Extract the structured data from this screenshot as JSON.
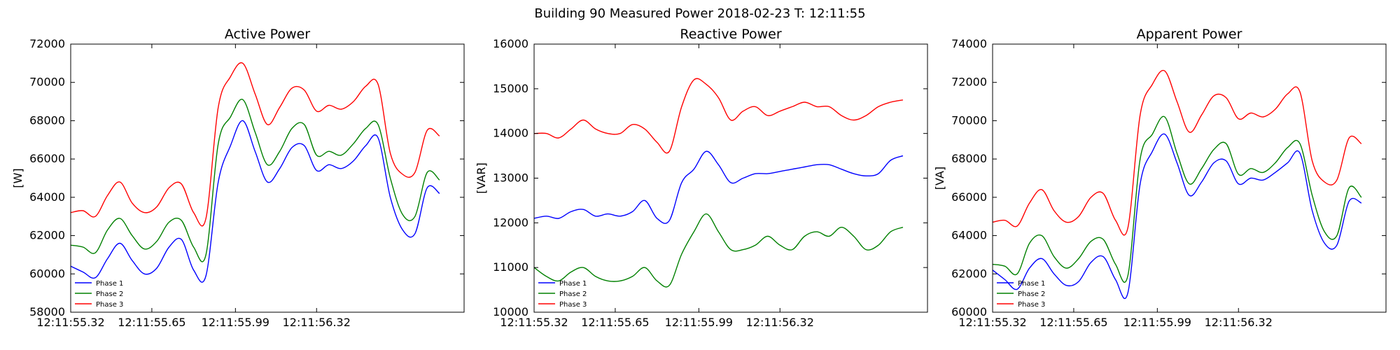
{
  "suptitle": "Building 90 Measured Power 2018-02-23 T: 12:11:55",
  "legend_labels": [
    "Phase 1",
    "Phase 2",
    "Phase 3"
  ],
  "series_colors": [
    "#0000ff",
    "#008000",
    "#ff0000"
  ],
  "chart_data": [
    {
      "type": "line",
      "title": "Active Power",
      "ylabel": "[W]",
      "ylim": [
        58000,
        72000
      ],
      "yticks": [
        58000,
        60000,
        62000,
        64000,
        66000,
        68000,
        70000,
        72000
      ],
      "xticks": [
        "12:11:55.32",
        "12:11:55.65",
        "12:11:55.99",
        "12:11:56.32"
      ],
      "x_tick_positions": [
        0,
        0.33,
        0.67,
        1.0
      ],
      "x_range": [
        0,
        1.6
      ],
      "x": [
        0,
        0.05,
        0.1,
        0.15,
        0.2,
        0.25,
        0.3,
        0.35,
        0.4,
        0.45,
        0.5,
        0.55,
        0.6,
        0.65,
        0.7,
        0.75,
        0.8,
        0.85,
        0.9,
        0.95,
        1.0,
        1.05,
        1.1,
        1.15,
        1.2,
        1.25,
        1.3,
        1.35,
        1.4,
        1.45,
        1.5
      ],
      "legend_loc": "lower-left",
      "series": [
        {
          "name": "Phase 1",
          "values": [
            60400,
            60100,
            59800,
            60800,
            61600,
            60700,
            60000,
            60300,
            61400,
            61800,
            60200,
            59900,
            64800,
            66700,
            68000,
            66400,
            64800,
            65500,
            66600,
            66700,
            65400,
            65700,
            65500,
            65900,
            66700,
            67100,
            64000,
            62300,
            62100,
            64500,
            64200
          ]
        },
        {
          "name": "Phase 2",
          "values": [
            61500,
            61400,
            61100,
            62300,
            62900,
            62000,
            61300,
            61700,
            62700,
            62800,
            61400,
            61000,
            66800,
            68200,
            69100,
            67400,
            65700,
            66400,
            67600,
            67800,
            66200,
            66400,
            66200,
            66800,
            67600,
            67800,
            65000,
            63100,
            63000,
            65300,
            64900
          ]
        },
        {
          "name": "Phase 3",
          "values": [
            63200,
            63300,
            63000,
            64100,
            64800,
            63700,
            63200,
            63500,
            64500,
            64700,
            63200,
            62900,
            68700,
            70300,
            71000,
            69400,
            67800,
            68700,
            69700,
            69600,
            68500,
            68800,
            68600,
            69000,
            69800,
            69900,
            66300,
            65200,
            65300,
            67500,
            67200
          ]
        }
      ]
    },
    {
      "type": "line",
      "title": "Reactive Power",
      "ylabel": "[VAR]",
      "ylim": [
        10000,
        16000
      ],
      "yticks": [
        10000,
        11000,
        12000,
        13000,
        14000,
        15000,
        16000
      ],
      "xticks": [
        "12:11:55.32",
        "12:11:55.65",
        "12:11:55.99",
        "12:11:56.32"
      ],
      "x_tick_positions": [
        0,
        0.33,
        0.67,
        1.0
      ],
      "x_range": [
        0,
        1.6
      ],
      "x": [
        0,
        0.05,
        0.1,
        0.15,
        0.2,
        0.25,
        0.3,
        0.35,
        0.4,
        0.45,
        0.5,
        0.55,
        0.6,
        0.65,
        0.7,
        0.75,
        0.8,
        0.85,
        0.9,
        0.95,
        1.0,
        1.05,
        1.1,
        1.15,
        1.2,
        1.25,
        1.3,
        1.35,
        1.4,
        1.45,
        1.5
      ],
      "legend_loc": "lower-left",
      "series": [
        {
          "name": "Phase 1",
          "values": [
            12100,
            12150,
            12100,
            12250,
            12300,
            12150,
            12200,
            12150,
            12250,
            12500,
            12100,
            12050,
            12900,
            13200,
            13600,
            13300,
            12900,
            13000,
            13100,
            13100,
            13150,
            13200,
            13250,
            13300,
            13300,
            13200,
            13100,
            13050,
            13100,
            13400,
            13500
          ]
        },
        {
          "name": "Phase 2",
          "values": [
            11000,
            10800,
            10700,
            10900,
            11000,
            10800,
            10700,
            10700,
            10800,
            11000,
            10700,
            10600,
            11300,
            11800,
            12200,
            11800,
            11400,
            11400,
            11500,
            11700,
            11500,
            11400,
            11700,
            11800,
            11700,
            11900,
            11700,
            11400,
            11500,
            11800,
            11900
          ]
        },
        {
          "name": "Phase 3",
          "values": [
            14000,
            14000,
            13900,
            14100,
            14300,
            14100,
            14000,
            14000,
            14200,
            14100,
            13800,
            13600,
            14600,
            15200,
            15100,
            14800,
            14300,
            14500,
            14600,
            14400,
            14500,
            14600,
            14700,
            14600,
            14600,
            14400,
            14300,
            14400,
            14600,
            14700,
            14750
          ]
        }
      ]
    },
    {
      "type": "line",
      "title": "Apparent Power",
      "ylabel": "[VA]",
      "ylim": [
        60000,
        74000
      ],
      "yticks": [
        60000,
        62000,
        64000,
        66000,
        68000,
        70000,
        72000,
        74000
      ],
      "xticks": [
        "12:11:55.32",
        "12:11:55.65",
        "12:11:55.99",
        "12:11:56.32"
      ],
      "x_tick_positions": [
        0,
        0.33,
        0.67,
        1.0
      ],
      "x_range": [
        0,
        1.6
      ],
      "x": [
        0,
        0.05,
        0.1,
        0.15,
        0.2,
        0.25,
        0.3,
        0.35,
        0.4,
        0.45,
        0.5,
        0.55,
        0.6,
        0.65,
        0.7,
        0.75,
        0.8,
        0.85,
        0.9,
        0.95,
        1.0,
        1.05,
        1.1,
        1.15,
        1.2,
        1.25,
        1.3,
        1.35,
        1.4,
        1.45,
        1.5
      ],
      "legend_loc": "lower-left",
      "series": [
        {
          "name": "Phase 1",
          "values": [
            62200,
            61700,
            61200,
            62300,
            62800,
            62000,
            61400,
            61600,
            62600,
            62900,
            61700,
            61000,
            66700,
            68400,
            69300,
            67800,
            66100,
            66800,
            67800,
            67900,
            66700,
            67000,
            66900,
            67300,
            67800,
            68300,
            65300,
            63600,
            63500,
            65800,
            65700
          ]
        },
        {
          "name": "Phase 2",
          "values": [
            62500,
            62400,
            62000,
            63600,
            64000,
            62900,
            62300,
            62800,
            63700,
            63800,
            62500,
            61900,
            68000,
            69300,
            70200,
            68300,
            66700,
            67500,
            68500,
            68800,
            67200,
            67500,
            67300,
            67800,
            68600,
            68800,
            66100,
            64200,
            64000,
            66500,
            66000
          ]
        },
        {
          "name": "Phase 3",
          "values": [
            64700,
            64800,
            64500,
            65700,
            66400,
            65300,
            64700,
            65000,
            66000,
            66200,
            64800,
            64400,
            70300,
            71900,
            72600,
            71000,
            69400,
            70300,
            71300,
            71200,
            70100,
            70400,
            70200,
            70600,
            71400,
            71500,
            67900,
            66800,
            66900,
            69100,
            68800
          ]
        }
      ]
    }
  ]
}
